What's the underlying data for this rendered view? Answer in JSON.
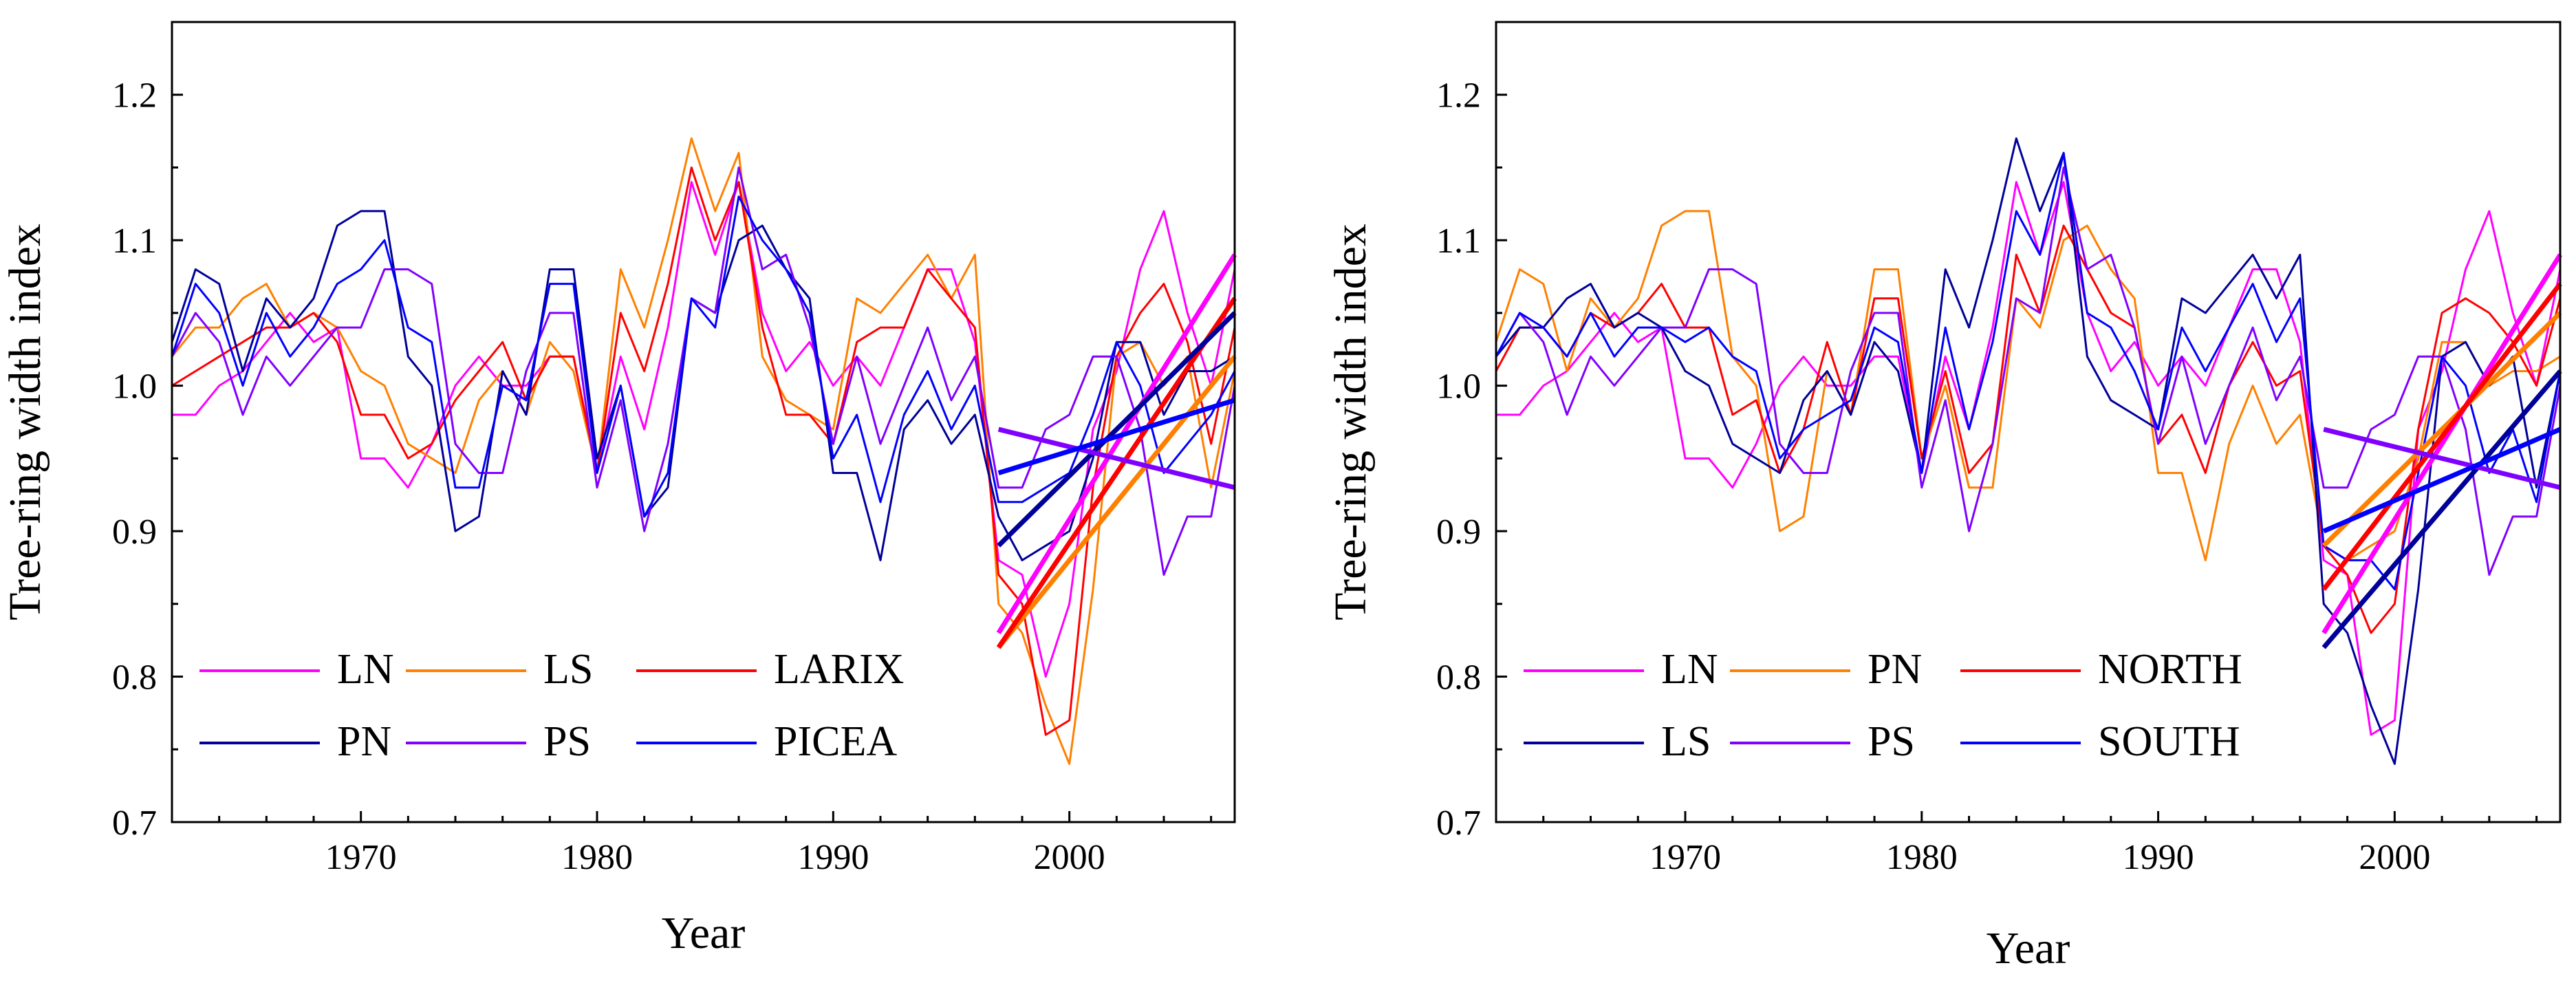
{
  "chart_data": [
    {
      "type": "line",
      "title": "",
      "xlabel": "Year",
      "ylabel": "Tree-ring width index",
      "xlim": [
        1962,
        2007
      ],
      "ylim": [
        0.7,
        1.25
      ],
      "xticks": [
        1970,
        1980,
        1990,
        2000
      ],
      "xtick_labels": [
        "1970",
        "1980",
        "1990",
        "2000"
      ],
      "yticks": [
        0.7,
        0.8,
        0.9,
        1.0,
        1.1,
        1.2
      ],
      "ytick_labels": [
        "0.7",
        "0.8",
        "0.9",
        "1.0",
        "1.1",
        "1.2"
      ],
      "grid": false,
      "legend": {
        "placement": "bottom-left",
        "columns": 3,
        "entries": [
          {
            "label": "LN",
            "color": "#ff00ff"
          },
          {
            "label": "LS",
            "color": "#ff8000"
          },
          {
            "label": "LARIX",
            "color": "#ff0000"
          },
          {
            "label": "PN",
            "color": "#000099"
          },
          {
            "label": "PS",
            "color": "#8000ff"
          },
          {
            "label": "PICEA",
            "color": "#0000ff"
          }
        ]
      },
      "x": [
        1962,
        1963,
        1964,
        1965,
        1966,
        1967,
        1968,
        1969,
        1970,
        1971,
        1972,
        1973,
        1974,
        1975,
        1976,
        1977,
        1978,
        1979,
        1980,
        1981,
        1982,
        1983,
        1984,
        1985,
        1986,
        1987,
        1988,
        1989,
        1990,
        1991,
        1992,
        1993,
        1994,
        1995,
        1996,
        1997,
        1998,
        1999,
        2000,
        2001,
        2002,
        2003,
        2004,
        2005,
        2006,
        2007
      ],
      "series": [
        {
          "name": "LN",
          "color": "#ff00ff",
          "values": [
            0.98,
            0.98,
            1.0,
            1.01,
            1.03,
            1.05,
            1.03,
            1.04,
            0.95,
            0.95,
            0.93,
            0.96,
            1.0,
            1.02,
            1.0,
            1.0,
            1.02,
            1.02,
            0.94,
            1.02,
            0.97,
            1.04,
            1.14,
            1.09,
            1.14,
            1.05,
            1.01,
            1.03,
            1.0,
            1.02,
            1.0,
            1.04,
            1.08,
            1.08,
            1.03,
            0.88,
            0.87,
            0.8,
            0.85,
            0.97,
            1.01,
            1.08,
            1.12,
            1.05,
            1.0,
            1.08
          ]
        },
        {
          "name": "LS",
          "color": "#ff8000",
          "values": [
            1.02,
            1.04,
            1.04,
            1.06,
            1.07,
            1.04,
            1.05,
            1.04,
            1.01,
            1.0,
            0.96,
            0.95,
            0.94,
            0.99,
            1.01,
            0.98,
            1.03,
            1.01,
            0.94,
            1.08,
            1.04,
            1.1,
            1.17,
            1.12,
            1.16,
            1.02,
            0.99,
            0.98,
            0.97,
            1.06,
            1.05,
            1.07,
            1.09,
            1.06,
            1.09,
            0.85,
            0.83,
            0.78,
            0.74,
            0.86,
            1.02,
            1.03,
            1.0,
            1.02,
            0.93,
            1.01
          ]
        },
        {
          "name": "LARIX",
          "color": "#ff0000",
          "values": [
            1.0,
            1.01,
            1.02,
            1.03,
            1.04,
            1.04,
            1.05,
            1.03,
            0.98,
            0.98,
            0.95,
            0.96,
            0.99,
            1.01,
            1.03,
            0.99,
            1.02,
            1.02,
            0.94,
            1.05,
            1.01,
            1.07,
            1.15,
            1.1,
            1.14,
            1.04,
            0.98,
            0.98,
            0.96,
            1.03,
            1.04,
            1.04,
            1.08,
            1.06,
            1.04,
            0.87,
            0.85,
            0.76,
            0.77,
            0.93,
            1.02,
            1.05,
            1.07,
            1.03,
            0.96,
            1.04
          ]
        },
        {
          "name": "PN",
          "color": "#000099",
          "values": [
            1.03,
            1.08,
            1.07,
            1.01,
            1.06,
            1.04,
            1.06,
            1.11,
            1.12,
            1.12,
            1.02,
            1.0,
            0.9,
            0.91,
            1.01,
            0.98,
            1.08,
            1.08,
            0.95,
            1.0,
            0.91,
            0.93,
            1.06,
            1.05,
            1.1,
            1.11,
            1.08,
            1.06,
            0.94,
            0.94,
            0.88,
            0.97,
            0.99,
            0.96,
            0.98,
            0.91,
            0.88,
            0.89,
            0.9,
            0.95,
            1.03,
            1.03,
            0.98,
            1.01,
            1.01,
            1.02
          ]
        },
        {
          "name": "PS",
          "color": "#8000ff",
          "values": [
            1.02,
            1.05,
            1.03,
            0.98,
            1.02,
            1.0,
            1.02,
            1.04,
            1.04,
            1.08,
            1.08,
            1.07,
            0.96,
            0.94,
            0.94,
            1.01,
            1.05,
            1.05,
            0.93,
            0.99,
            0.9,
            0.96,
            1.06,
            1.05,
            1.15,
            1.08,
            1.09,
            1.04,
            0.96,
            1.02,
            0.96,
            1.0,
            1.04,
            0.99,
            1.02,
            0.93,
            0.93,
            0.97,
            0.98,
            1.02,
            1.02,
            0.97,
            0.87,
            0.91,
            0.91,
            1.0
          ]
        },
        {
          "name": "PICEA",
          "color": "#0000ff",
          "values": [
            1.02,
            1.07,
            1.05,
            1.0,
            1.05,
            1.02,
            1.04,
            1.07,
            1.08,
            1.1,
            1.04,
            1.03,
            0.93,
            0.93,
            1.0,
            0.99,
            1.07,
            1.07,
            0.94,
            1.0,
            0.91,
            0.94,
            1.06,
            1.04,
            1.13,
            1.1,
            1.08,
            1.05,
            0.95,
            0.98,
            0.92,
            0.98,
            1.01,
            0.97,
            1.0,
            0.92,
            0.92,
            0.93,
            0.94,
            0.98,
            1.03,
            1.0,
            0.94,
            0.96,
            0.98,
            1.01
          ]
        }
      ],
      "trend_lines": [
        {
          "series": "LN",
          "color": "#ff00ff",
          "x": [
            1997,
            2007
          ],
          "y": [
            0.83,
            1.09
          ]
        },
        {
          "series": "LS",
          "color": "#ff8000",
          "x": [
            1997,
            2007
          ],
          "y": [
            0.82,
            1.02
          ]
        },
        {
          "series": "LARIX",
          "color": "#ff0000",
          "x": [
            1997,
            2007
          ],
          "y": [
            0.82,
            1.06
          ]
        },
        {
          "series": "PN",
          "color": "#000099",
          "x": [
            1997,
            2007
          ],
          "y": [
            0.89,
            1.05
          ]
        },
        {
          "series": "PS",
          "color": "#8000ff",
          "x": [
            1997,
            2007
          ],
          "y": [
            0.97,
            0.93
          ]
        },
        {
          "series": "PICEA",
          "color": "#0000ff",
          "x": [
            1997,
            2007
          ],
          "y": [
            0.94,
            0.99
          ]
        }
      ]
    },
    {
      "type": "line",
      "title": "",
      "xlabel": "Year",
      "ylabel": "Tree-ring width index",
      "xlim": [
        1962,
        2007
      ],
      "ylim": [
        0.7,
        1.25
      ],
      "xticks": [
        1970,
        1980,
        1990,
        2000
      ],
      "xtick_labels": [
        "1970",
        "1980",
        "1990",
        "2000"
      ],
      "yticks": [
        0.7,
        0.8,
        0.9,
        1.0,
        1.1,
        1.2
      ],
      "ytick_labels": [
        "0.7",
        "0.8",
        "0.9",
        "1.0",
        "1.1",
        "1.2"
      ],
      "grid": false,
      "legend": {
        "placement": "bottom-left",
        "columns": 3,
        "entries": [
          {
            "label": "LN",
            "color": "#ff00ff"
          },
          {
            "label": "PN",
            "color": "#ff8000"
          },
          {
            "label": "NORTH",
            "color": "#ff0000"
          },
          {
            "label": "LS",
            "color": "#000099"
          },
          {
            "label": "PS",
            "color": "#8000ff"
          },
          {
            "label": "SOUTH",
            "color": "#0000ff"
          }
        ]
      },
      "x": [
        1962,
        1963,
        1964,
        1965,
        1966,
        1967,
        1968,
        1969,
        1970,
        1971,
        1972,
        1973,
        1974,
        1975,
        1976,
        1977,
        1978,
        1979,
        1980,
        1981,
        1982,
        1983,
        1984,
        1985,
        1986,
        1987,
        1988,
        1989,
        1990,
        1991,
        1992,
        1993,
        1994,
        1995,
        1996,
        1997,
        1998,
        1999,
        2000,
        2001,
        2002,
        2003,
        2004,
        2005,
        2006,
        2007
      ],
      "series": [
        {
          "name": "LN",
          "color": "#ff00ff",
          "values": [
            0.98,
            0.98,
            1.0,
            1.01,
            1.03,
            1.05,
            1.03,
            1.04,
            0.95,
            0.95,
            0.93,
            0.96,
            1.0,
            1.02,
            1.0,
            1.0,
            1.02,
            1.02,
            0.94,
            1.02,
            0.97,
            1.04,
            1.14,
            1.09,
            1.14,
            1.05,
            1.01,
            1.03,
            1.0,
            1.02,
            1.0,
            1.04,
            1.08,
            1.08,
            1.03,
            0.88,
            0.87,
            0.76,
            0.77,
            0.97,
            1.01,
            1.08,
            1.12,
            1.05,
            1.0,
            1.08
          ]
        },
        {
          "name": "PN",
          "color": "#ff8000",
          "values": [
            1.03,
            1.08,
            1.07,
            1.01,
            1.06,
            1.04,
            1.06,
            1.11,
            1.12,
            1.12,
            1.02,
            1.0,
            0.9,
            0.91,
            1.01,
            0.98,
            1.08,
            1.08,
            0.95,
            1.0,
            0.93,
            0.93,
            1.06,
            1.04,
            1.1,
            1.11,
            1.08,
            1.06,
            0.94,
            0.94,
            0.88,
            0.96,
            1.0,
            0.96,
            0.98,
            0.89,
            0.88,
            0.89,
            0.9,
            0.95,
            1.03,
            1.03,
            1.0,
            1.01,
            1.01,
            1.02
          ]
        },
        {
          "name": "NORTH",
          "color": "#ff0000",
          "values": [
            1.01,
            1.04,
            1.04,
            1.02,
            1.05,
            1.04,
            1.05,
            1.07,
            1.04,
            1.04,
            0.98,
            0.99,
            0.94,
            0.97,
            1.03,
            0.98,
            1.06,
            1.06,
            0.95,
            1.01,
            0.94,
            0.96,
            1.09,
            1.05,
            1.11,
            1.08,
            1.05,
            1.04,
            0.96,
            0.98,
            0.94,
            1.0,
            1.03,
            1.0,
            1.01,
            0.89,
            0.87,
            0.83,
            0.85,
            0.97,
            1.05,
            1.06,
            1.05,
            1.03,
            1.0,
            1.06
          ]
        },
        {
          "name": "LS",
          "color": "#000099",
          "values": [
            1.02,
            1.04,
            1.04,
            1.06,
            1.07,
            1.04,
            1.05,
            1.04,
            1.01,
            1.0,
            0.96,
            0.95,
            0.94,
            0.99,
            1.01,
            0.98,
            1.03,
            1.01,
            0.94,
            1.08,
            1.04,
            1.1,
            1.17,
            1.12,
            1.16,
            1.02,
            0.99,
            0.98,
            0.97,
            1.06,
            1.05,
            1.07,
            1.09,
            1.06,
            1.09,
            0.85,
            0.83,
            0.78,
            0.74,
            0.86,
            1.02,
            1.03,
            1.0,
            1.02,
            0.93,
            1.01
          ]
        },
        {
          "name": "PS",
          "color": "#8000ff",
          "values": [
            1.02,
            1.05,
            1.03,
            0.98,
            1.02,
            1.0,
            1.02,
            1.04,
            1.04,
            1.08,
            1.08,
            1.07,
            0.96,
            0.94,
            0.94,
            1.01,
            1.05,
            1.05,
            0.93,
            0.99,
            0.9,
            0.96,
            1.06,
            1.05,
            1.15,
            1.08,
            1.09,
            1.04,
            0.96,
            1.02,
            0.96,
            1.0,
            1.04,
            0.99,
            1.02,
            0.93,
            0.93,
            0.97,
            0.98,
            1.02,
            1.02,
            0.97,
            0.87,
            0.91,
            0.91,
            1.0
          ]
        },
        {
          "name": "SOUTH",
          "color": "#0000ff",
          "values": [
            1.02,
            1.05,
            1.04,
            1.02,
            1.05,
            1.02,
            1.04,
            1.04,
            1.03,
            1.04,
            1.02,
            1.01,
            0.95,
            0.97,
            0.98,
            0.99,
            1.04,
            1.03,
            0.94,
            1.04,
            0.97,
            1.03,
            1.12,
            1.09,
            1.16,
            1.05,
            1.04,
            1.01,
            0.97,
            1.04,
            1.01,
            1.04,
            1.07,
            1.03,
            1.06,
            0.89,
            0.88,
            0.88,
            0.86,
            0.94,
            1.02,
            1.0,
            0.94,
            0.97,
            0.92,
            1.01
          ]
        }
      ],
      "trend_lines": [
        {
          "series": "LN",
          "color": "#ff00ff",
          "x": [
            1997,
            2007
          ],
          "y": [
            0.83,
            1.09
          ]
        },
        {
          "series": "PN",
          "color": "#ff8000",
          "x": [
            1997,
            2007
          ],
          "y": [
            0.89,
            1.05
          ]
        },
        {
          "series": "NORTH",
          "color": "#ff0000",
          "x": [
            1997,
            2007
          ],
          "y": [
            0.86,
            1.07
          ]
        },
        {
          "series": "LS",
          "color": "#000099",
          "x": [
            1997,
            2007
          ],
          "y": [
            0.82,
            1.01
          ]
        },
        {
          "series": "PS",
          "color": "#8000ff",
          "x": [
            1997,
            2007
          ],
          "y": [
            0.97,
            0.93
          ]
        },
        {
          "series": "SOUTH",
          "color": "#0000ff",
          "x": [
            1997,
            2007
          ],
          "y": [
            0.9,
            0.97
          ]
        }
      ]
    }
  ]
}
